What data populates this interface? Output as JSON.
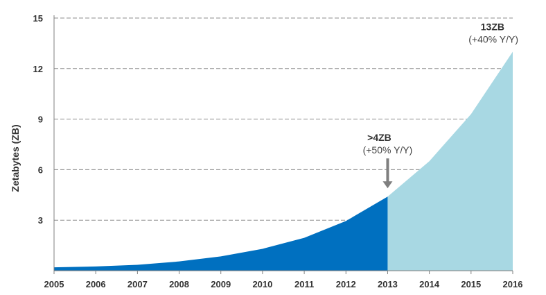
{
  "chart_data": {
    "type": "area",
    "title": "",
    "xlabel": "",
    "ylabel": "Zetabytes (ZB)",
    "x": [
      "2005",
      "2006",
      "2007",
      "2008",
      "2009",
      "2010",
      "2011",
      "2012",
      "2013",
      "2014",
      "2015",
      "2016"
    ],
    "ylim": [
      0,
      15
    ],
    "yticks": [
      "3",
      "6",
      "9",
      "12",
      "15"
    ],
    "grid": true,
    "legend": "none",
    "series": [
      {
        "values": [
          0.2,
          0.25,
          0.35,
          0.55,
          0.85,
          1.3,
          1.95,
          2.95,
          4.4,
          null,
          null,
          null
        ],
        "color": "#0070c0"
      },
      {
        "values": [
          null,
          null,
          null,
          null,
          null,
          null,
          null,
          null,
          4.4,
          6.5,
          9.3,
          13.0
        ],
        "color": "#a8d8e3"
      }
    ],
    "annotations": [
      {
        "x": "2013",
        "y": 4.4,
        "label": ">4ZB",
        "sublabel": "(+50% Y/Y)",
        "arrow": true,
        "arrow_color": "#7f7f7f"
      },
      {
        "x": "2016",
        "y": 13.0,
        "label": "13ZB",
        "sublabel": "(+40% Y/Y)",
        "arrow": false
      }
    ]
  }
}
